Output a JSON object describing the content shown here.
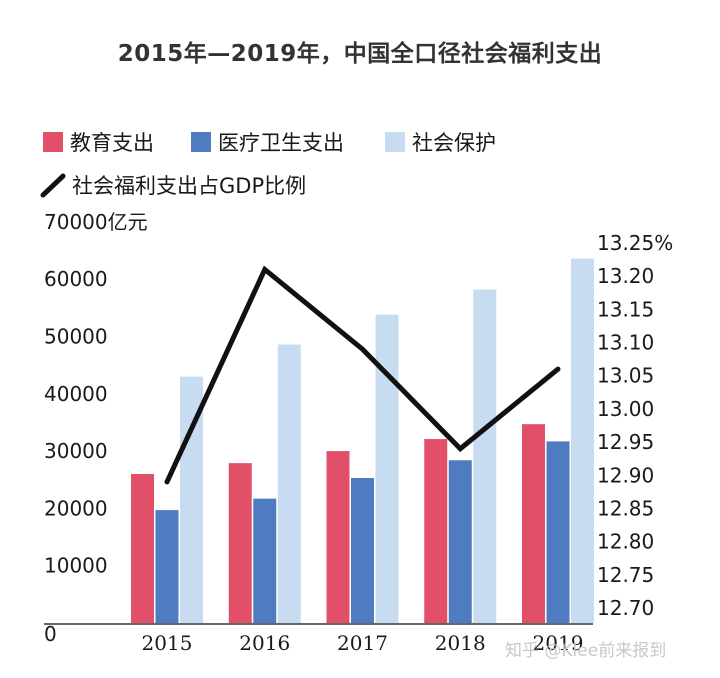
{
  "chart_data": {
    "type": "bar",
    "title": "2015年—2019年，中国全口径社会福利支出",
    "categories": [
      "2015",
      "2016",
      "2017",
      "2018",
      "2019"
    ],
    "series": [
      {
        "name": "教育支出",
        "color": "#e15068",
        "values": [
          26000,
          27900,
          30000,
          32100,
          34700
        ]
      },
      {
        "name": "医疗卫生支出",
        "color": "#4f7bc1",
        "values": [
          19700,
          21700,
          25300,
          28400,
          31700
        ]
      },
      {
        "name": "社会保护",
        "color": "#c7dcf1",
        "values": [
          43000,
          48600,
          53800,
          58200,
          63600
        ]
      }
    ],
    "line_series": {
      "name": "社会福利支出占GDP比例",
      "color": "#111111",
      "values": [
        12.89,
        13.21,
        13.09,
        12.94,
        13.06
      ]
    },
    "y_left": {
      "min": 0,
      "max": 70000,
      "ticks": [
        0,
        10000,
        20000,
        30000,
        40000,
        50000,
        60000,
        70000
      ],
      "tick_labels": [
        "0",
        "10000",
        "20000",
        "30000",
        "40000",
        "50000",
        "60000",
        "70000亿元"
      ]
    },
    "y_right": {
      "min": 12.7,
      "max": 13.25,
      "ticks": [
        12.7,
        12.75,
        12.8,
        12.85,
        12.9,
        12.95,
        13.0,
        13.05,
        13.1,
        13.15,
        13.2,
        13.25
      ],
      "tick_labels": [
        "12.70",
        "12.75",
        "12.80",
        "12.85",
        "12.90",
        "12.95",
        "13.00",
        "13.05",
        "13.10",
        "13.15",
        "13.20",
        "13.25%"
      ]
    },
    "legend_position": "top-left",
    "grid": false
  },
  "watermark": "知乎 @Klee前来报到"
}
